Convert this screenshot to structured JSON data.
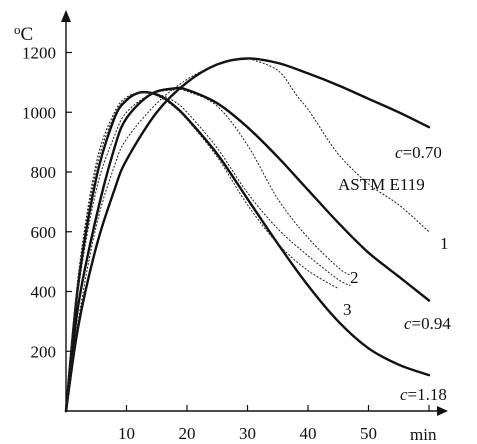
{
  "chart_data": {
    "type": "line",
    "xlabel": "min",
    "ylabel": "oC",
    "xlim": [
      0,
      60
    ],
    "ylim": [
      0,
      1250
    ],
    "xticks": [
      10,
      20,
      30,
      40,
      50
    ],
    "yticks": [
      200,
      400,
      600,
      800,
      1000,
      1200
    ],
    "series": [
      {
        "name": "c=0.70",
        "label_prefix": "c",
        "label_value": "=0.70",
        "style": "solid",
        "x": [
          0,
          2,
          5,
          8,
          10,
          15,
          20,
          25,
          30,
          35,
          40,
          45,
          50,
          55,
          60
        ],
        "y": [
          0,
          280,
          550,
          740,
          840,
          1000,
          1100,
          1160,
          1180,
          1165,
          1130,
          1090,
          1045,
          1000,
          950
        ]
      },
      {
        "name": "c=0.94",
        "label_prefix": "c",
        "label_value": "=0.94",
        "style": "solid",
        "x": [
          0,
          2,
          5,
          8,
          10,
          14,
          18,
          20,
          25,
          30,
          35,
          40,
          45,
          50,
          55,
          60
        ],
        "y": [
          0,
          350,
          650,
          880,
          980,
          1060,
          1080,
          1075,
          1030,
          950,
          850,
          740,
          630,
          530,
          450,
          370
        ]
      },
      {
        "name": "c=1.18",
        "label_prefix": "c",
        "label_value": "=1.18",
        "style": "solid",
        "x": [
          0,
          2,
          5,
          8,
          10,
          12,
          14,
          16,
          18,
          20,
          25,
          30,
          35,
          40,
          45,
          50,
          55,
          60
        ],
        "y": [
          0,
          420,
          780,
          980,
          1040,
          1065,
          1065,
          1050,
          1020,
          980,
          860,
          710,
          560,
          420,
          300,
          210,
          155,
          120
        ]
      },
      {
        "name": "ASTM E119",
        "label_prefix": "",
        "label_value": "ASTM E119",
        "style": "dashed",
        "x": [
          0,
          2,
          5,
          8,
          10,
          15,
          20,
          25,
          28,
          30,
          35,
          38,
          40,
          41,
          45,
          50,
          55,
          60
        ],
        "y": [
          0,
          300,
          620,
          820,
          910,
          1030,
          1110,
          1160,
          1175,
          1180,
          1140,
          1060,
          1010,
          980,
          860,
          760,
          690,
          600
        ]
      },
      {
        "name": "1",
        "label_prefix": "",
        "label_value": "1",
        "style": "dashed",
        "x": [
          0,
          2,
          5,
          8,
          10,
          12,
          14,
          16,
          18,
          20,
          25,
          30,
          35,
          40,
          45,
          47
        ],
        "y": [
          0,
          450,
          830,
          1000,
          1050,
          1065,
          1065,
          1055,
          1035,
          1000,
          880,
          730,
          610,
          520,
          440,
          420
        ]
      },
      {
        "name": "2",
        "label_prefix": "",
        "label_value": "2",
        "style": "dashed",
        "x": [
          0,
          2,
          5,
          8,
          10,
          14,
          18,
          20,
          25,
          30,
          35,
          40,
          45,
          47
        ],
        "y": [
          0,
          400,
          740,
          920,
          1000,
          1060,
          1075,
          1070,
          1020,
          890,
          710,
          580,
          480,
          455
        ]
      },
      {
        "name": "3",
        "label_prefix": "",
        "label_value": "3",
        "style": "dashed",
        "x": [
          0,
          2,
          5,
          8,
          10,
          12,
          14,
          16,
          18,
          20,
          25,
          30,
          35,
          40,
          45
        ],
        "y": [
          0,
          440,
          810,
          990,
          1045,
          1065,
          1062,
          1045,
          1015,
          975,
          850,
          690,
          560,
          470,
          410
        ]
      }
    ]
  }
}
